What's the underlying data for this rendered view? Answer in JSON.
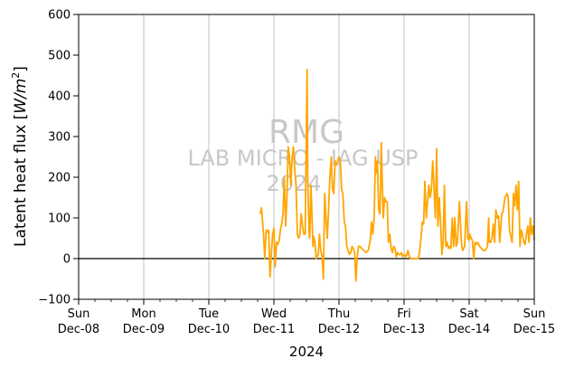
{
  "chart_data": {
    "type": "line",
    "ylabel_text": "Latent heat flux [",
    "ylabel_var": "W/m",
    "ylabel_exp": "2",
    "ylabel_close": "]",
    "xlabel": "2024",
    "ylim": [
      -100,
      600
    ],
    "yticks": [
      "600",
      "500",
      "400",
      "300",
      "200",
      "100",
      "0",
      "−100"
    ],
    "yvalues": [
      600,
      500,
      400,
      300,
      200,
      100,
      0,
      -100
    ],
    "xlim_days": [
      0,
      7
    ],
    "xticks": [
      {
        "day": "Sun",
        "date": "Dec-08"
      },
      {
        "day": "Mon",
        "date": "Dec-09"
      },
      {
        "day": "Tue",
        "date": "Dec-10"
      },
      {
        "day": "Wed",
        "date": "Dec-11"
      },
      {
        "day": "Thu",
        "date": "Dec-12"
      },
      {
        "day": "Fri",
        "date": "Dec-13"
      },
      {
        "day": "Sat",
        "date": "Dec-14"
      },
      {
        "day": "Sun",
        "date": "Dec-15"
      }
    ],
    "grid": "vertical",
    "zero_line": true,
    "watermark": {
      "line1": "RMG",
      "line2": "LAB MICRO - IAG USP",
      "line3": "2024"
    },
    "series": [
      {
        "color": "#ffa500",
        "points": [
          [
            2.79,
            110
          ],
          [
            2.81,
            125
          ],
          [
            2.84,
            60
          ],
          [
            2.86,
            0
          ],
          [
            2.88,
            70
          ],
          [
            2.9,
            65
          ],
          [
            2.92,
            70
          ],
          [
            2.94,
            -45
          ],
          [
            2.96,
            10
          ],
          [
            2.98,
            60
          ],
          [
            3.0,
            75
          ],
          [
            3.02,
            -20
          ],
          [
            3.04,
            40
          ],
          [
            3.06,
            35
          ],
          [
            3.08,
            45
          ],
          [
            3.1,
            70
          ],
          [
            3.12,
            85
          ],
          [
            3.14,
            110
          ],
          [
            3.16,
            200
          ],
          [
            3.18,
            80
          ],
          [
            3.2,
            150
          ],
          [
            3.22,
            275
          ],
          [
            3.24,
            250
          ],
          [
            3.26,
            180
          ],
          [
            3.28,
            250
          ],
          [
            3.3,
            275
          ],
          [
            3.32,
            220
          ],
          [
            3.34,
            180
          ],
          [
            3.36,
            60
          ],
          [
            3.38,
            50
          ],
          [
            3.4,
            60
          ],
          [
            3.42,
            110
          ],
          [
            3.44,
            80
          ],
          [
            3.46,
            60
          ],
          [
            3.48,
            60
          ],
          [
            3.49,
            200
          ],
          [
            3.51,
            465
          ],
          [
            3.52,
            200
          ],
          [
            3.54,
            65
          ],
          [
            3.55,
            50
          ],
          [
            3.57,
            180
          ],
          [
            3.59,
            80
          ],
          [
            3.6,
            30
          ],
          [
            3.61,
            55
          ],
          [
            3.63,
            40
          ],
          [
            3.65,
            0
          ],
          [
            3.68,
            10
          ],
          [
            3.7,
            60
          ],
          [
            3.72,
            20
          ],
          [
            3.74,
            5
          ],
          [
            3.76,
            -50
          ],
          [
            3.78,
            160
          ],
          [
            3.8,
            100
          ],
          [
            3.82,
            50
          ],
          [
            3.84,
            120
          ],
          [
            3.86,
            200
          ],
          [
            3.88,
            250
          ],
          [
            3.9,
            170
          ],
          [
            3.92,
            160
          ],
          [
            3.94,
            240
          ],
          [
            3.96,
            230
          ],
          [
            3.98,
            240
          ],
          [
            4.0,
            250
          ],
          [
            4.02,
            240
          ],
          [
            4.04,
            170
          ],
          [
            4.06,
            160
          ],
          [
            4.08,
            90
          ],
          [
            4.1,
            80
          ],
          [
            4.12,
            30
          ],
          [
            4.14,
            20
          ],
          [
            4.16,
            10
          ],
          [
            4.18,
            15
          ],
          [
            4.2,
            30
          ],
          [
            4.22,
            25
          ],
          [
            4.24,
            15
          ],
          [
            4.26,
            -55
          ],
          [
            4.28,
            5
          ],
          [
            4.3,
            30
          ],
          [
            4.32,
            30
          ],
          [
            4.35,
            25
          ],
          [
            4.38,
            20
          ],
          [
            4.41,
            15
          ],
          [
            4.45,
            20
          ],
          [
            4.48,
            45
          ],
          [
            4.5,
            90
          ],
          [
            4.52,
            60
          ],
          [
            4.54,
            100
          ],
          [
            4.56,
            250
          ],
          [
            4.57,
            210
          ],
          [
            4.59,
            240
          ],
          [
            4.61,
            120
          ],
          [
            4.63,
            110
          ],
          [
            4.65,
            285
          ],
          [
            4.67,
            160
          ],
          [
            4.68,
            100
          ],
          [
            4.7,
            150
          ],
          [
            4.72,
            140
          ],
          [
            4.74,
            140
          ],
          [
            4.76,
            40
          ],
          [
            4.78,
            60
          ],
          [
            4.8,
            25
          ],
          [
            4.82,
            15
          ],
          [
            4.84,
            30
          ],
          [
            4.86,
            25
          ],
          [
            4.88,
            5
          ],
          [
            4.9,
            15
          ],
          [
            4.92,
            10
          ],
          [
            4.94,
            10
          ],
          [
            4.96,
            15
          ],
          [
            4.98,
            5
          ],
          [
            5.0,
            10
          ],
          [
            5.03,
            5
          ],
          [
            5.06,
            20
          ],
          [
            5.08,
            5
          ],
          [
            5.1,
            0
          ],
          [
            5.12,
            0
          ],
          [
            5.15,
            0
          ],
          [
            5.18,
            0
          ],
          [
            5.22,
            0
          ],
          [
            5.24,
            20
          ],
          [
            5.26,
            50
          ],
          [
            5.28,
            90
          ],
          [
            5.3,
            85
          ],
          [
            5.32,
            190
          ],
          [
            5.34,
            100
          ],
          [
            5.36,
            140
          ],
          [
            5.38,
            180
          ],
          [
            5.4,
            150
          ],
          [
            5.42,
            170
          ],
          [
            5.44,
            240
          ],
          [
            5.46,
            175
          ],
          [
            5.48,
            100
          ],
          [
            5.5,
            270
          ],
          [
            5.52,
            80
          ],
          [
            5.54,
            150
          ],
          [
            5.56,
            90
          ],
          [
            5.58,
            10
          ],
          [
            5.6,
            40
          ],
          [
            5.62,
            180
          ],
          [
            5.64,
            30
          ],
          [
            5.66,
            40
          ],
          [
            5.68,
            25
          ],
          [
            5.7,
            30
          ],
          [
            5.72,
            25
          ],
          [
            5.74,
            100
          ],
          [
            5.76,
            30
          ],
          [
            5.78,
            100
          ],
          [
            5.8,
            30
          ],
          [
            5.82,
            40
          ],
          [
            5.85,
            140
          ],
          [
            5.88,
            40
          ],
          [
            5.9,
            20
          ],
          [
            5.93,
            30
          ],
          [
            5.96,
            140
          ],
          [
            5.98,
            50
          ],
          [
            6.0,
            45
          ],
          [
            6.01,
            60
          ],
          [
            6.03,
            50
          ],
          [
            6.05,
            45
          ],
          [
            6.07,
            0
          ],
          [
            6.09,
            40
          ],
          [
            6.11,
            35
          ],
          [
            6.13,
            40
          ],
          [
            6.16,
            30
          ],
          [
            6.19,
            25
          ],
          [
            6.22,
            20
          ],
          [
            6.25,
            20
          ],
          [
            6.28,
            30
          ],
          [
            6.3,
            100
          ],
          [
            6.31,
            40
          ],
          [
            6.33,
            40
          ],
          [
            6.35,
            50
          ],
          [
            6.37,
            85
          ],
          [
            6.39,
            40
          ],
          [
            6.41,
            120
          ],
          [
            6.43,
            100
          ],
          [
            6.45,
            105
          ],
          [
            6.47,
            40
          ],
          [
            6.5,
            110
          ],
          [
            6.52,
            115
          ],
          [
            6.55,
            150
          ],
          [
            6.58,
            160
          ],
          [
            6.6,
            150
          ],
          [
            6.62,
            70
          ],
          [
            6.64,
            55
          ],
          [
            6.66,
            40
          ],
          [
            6.68,
            160
          ],
          [
            6.7,
            130
          ],
          [
            6.72,
            180
          ],
          [
            6.74,
            120
          ],
          [
            6.76,
            190
          ],
          [
            6.78,
            30
          ],
          [
            6.8,
            70
          ],
          [
            6.82,
            60
          ],
          [
            6.84,
            40
          ],
          [
            6.86,
            35
          ],
          [
            6.88,
            60
          ],
          [
            6.9,
            80
          ],
          [
            6.92,
            40
          ],
          [
            6.94,
            100
          ],
          [
            6.96,
            60
          ],
          [
            6.98,
            80
          ],
          [
            7.0,
            45
          ]
        ]
      }
    ]
  }
}
